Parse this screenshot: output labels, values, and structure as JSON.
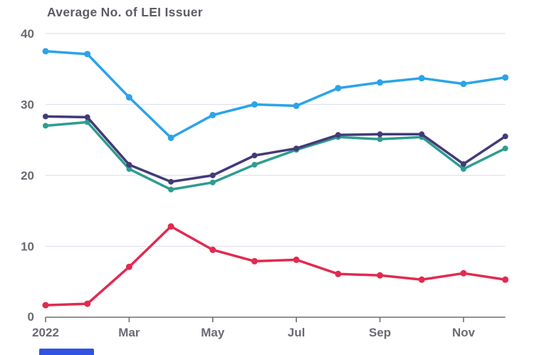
{
  "chart": {
    "title": "Average No. of LEI Issuer"
  },
  "chart_data": {
    "type": "line",
    "title": "Average No. of LEI Issuer",
    "x": [
      "Jan",
      "Feb",
      "Mar",
      "Apr",
      "May",
      "Jun",
      "Jul",
      "Aug",
      "Sep",
      "Oct",
      "Nov",
      "Dec"
    ],
    "x_year": "2022",
    "x_tick_labels": [
      {
        "index": 0,
        "label": "2022"
      },
      {
        "index": 2,
        "label": "Mar"
      },
      {
        "index": 4,
        "label": "May"
      },
      {
        "index": 6,
        "label": "Jul"
      },
      {
        "index": 8,
        "label": "Sep"
      },
      {
        "index": 10,
        "label": "Nov"
      }
    ],
    "y_ticks": [
      40,
      30,
      20,
      10,
      0
    ],
    "ylim": [
      0,
      40
    ],
    "grid": "horizontal",
    "legend": "none",
    "series": [
      {
        "name": "series-light-blue",
        "color": "#2ba3ea",
        "values": [
          37.5,
          37.1,
          31.0,
          25.3,
          28.5,
          30.0,
          29.8,
          32.3,
          33.1,
          33.7,
          32.9,
          33.8
        ]
      },
      {
        "name": "series-teal",
        "color": "#2e9d8f",
        "values": [
          27.0,
          27.5,
          20.9,
          18.0,
          19.0,
          21.5,
          23.6,
          25.4,
          25.1,
          25.4,
          20.9,
          23.8
        ]
      },
      {
        "name": "series-dark-purple",
        "color": "#433a78",
        "values": [
          28.3,
          28.2,
          21.5,
          19.1,
          20.0,
          22.8,
          23.8,
          25.7,
          25.8,
          25.8,
          21.6,
          25.5
        ]
      },
      {
        "name": "series-red",
        "color": "#e22a4f",
        "values": [
          1.7,
          1.9,
          7.1,
          12.8,
          9.5,
          7.9,
          8.1,
          6.1,
          5.9,
          5.3,
          6.2,
          5.3
        ]
      }
    ],
    "palette": {
      "title_text": "#5c5c64",
      "axis_label_text": "#6a6a73",
      "gridline": "#dde2ee",
      "axis_line": "#6e6e78"
    }
  },
  "decorations": {
    "clipped_axis_text": "0",
    "clipped_blue_element_color": "#3053e3"
  }
}
